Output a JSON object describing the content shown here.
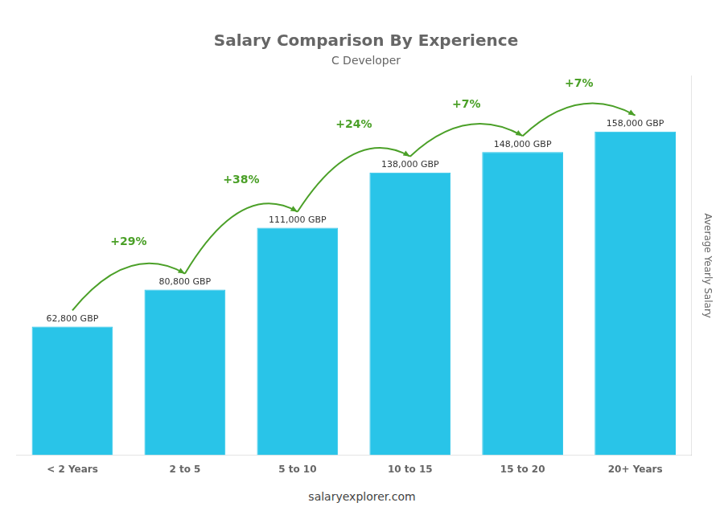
{
  "chart_data": {
    "type": "bar",
    "title": "Salary Comparison By Experience",
    "subtitle": "C Developer",
    "categories": [
      "< 2 Years",
      "2 to 5",
      "5 to 10",
      "10 to 15",
      "15 to 20",
      "20+ Years"
    ],
    "values": [
      62800,
      80800,
      111000,
      138000,
      148000,
      158000
    ],
    "value_labels": [
      "62,800 GBP",
      "80,800 GBP",
      "111,000 GBP",
      "138,000 GBP",
      "148,000 GBP",
      "158,000 GBP"
    ],
    "data_labels": true,
    "color": "#29C4E8",
    "ylabel": "Average Yearly Salary",
    "ylim": [
      0,
      185000
    ],
    "grid": false,
    "tick_labels": "x",
    "annotations": [
      "+29%",
      "+38%",
      "+24%",
      "+7%",
      "+7%"
    ],
    "caption": "salaryexplorer.com"
  }
}
